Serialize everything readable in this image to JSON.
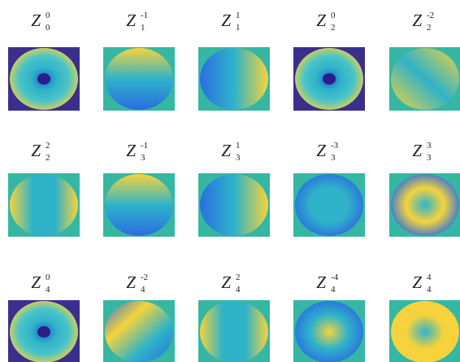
{
  "panels": [
    {
      "symbol": "Z",
      "superscript": "0",
      "subscript": "0"
    },
    {
      "symbol": "Z",
      "superscript": "-1",
      "subscript": "1"
    },
    {
      "symbol": "Z",
      "superscript": "1",
      "subscript": "1"
    },
    {
      "symbol": "Z",
      "superscript": "0",
      "subscript": "2"
    },
    {
      "symbol": "Z",
      "superscript": "-2",
      "subscript": "2"
    },
    {
      "symbol": "Z",
      "superscript": "2",
      "subscript": "2"
    },
    {
      "symbol": "Z",
      "superscript": "-1",
      "subscript": "3"
    },
    {
      "symbol": "Z",
      "superscript": "1",
      "subscript": "3"
    },
    {
      "symbol": "Z",
      "superscript": "-3",
      "subscript": "3"
    },
    {
      "symbol": "Z",
      "superscript": "3",
      "subscript": "3"
    },
    {
      "symbol": "Z",
      "superscript": "0",
      "subscript": "4"
    },
    {
      "symbol": "Z",
      "superscript": "-2",
      "subscript": "4"
    },
    {
      "symbol": "Z",
      "superscript": "2",
      "subscript": "4"
    },
    {
      "symbol": "Z",
      "superscript": "-4",
      "subscript": "4"
    },
    {
      "symbol": "Z",
      "superscript": "4",
      "subscript": "4"
    }
  ]
}
